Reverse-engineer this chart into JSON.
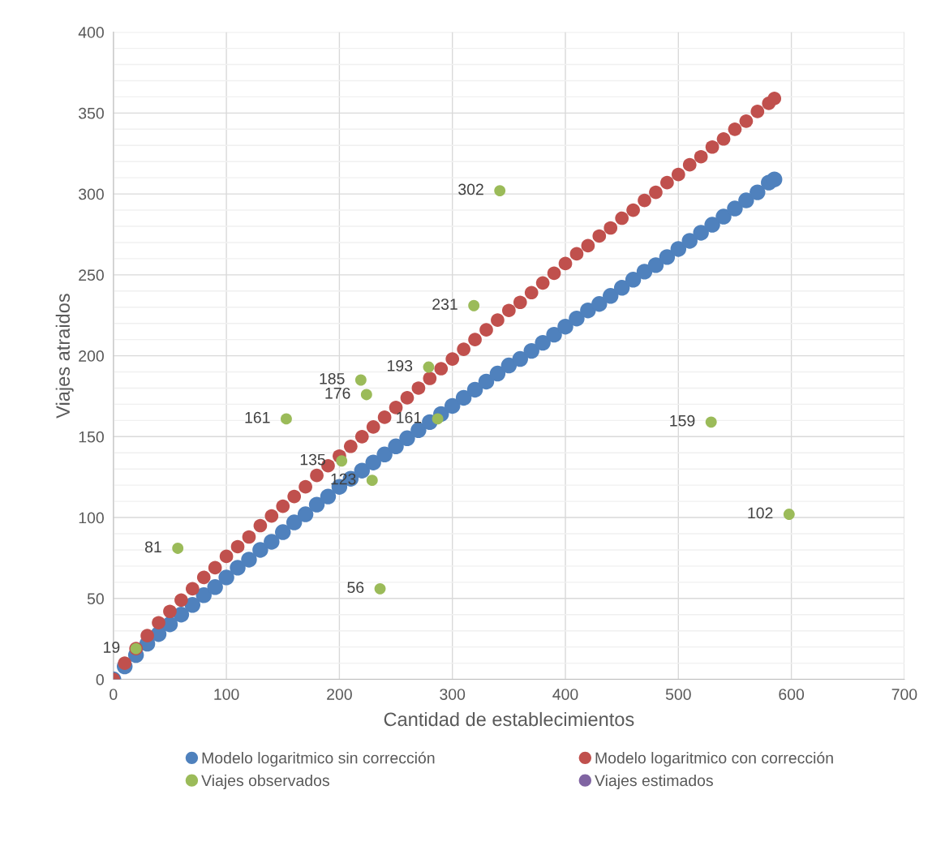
{
  "chart_data": {
    "type": "scatter",
    "xlabel": "Cantidad de establecimientos",
    "ylabel": "Viajes atraidos",
    "xlim": [
      0,
      700
    ],
    "xticks": [
      0,
      100,
      200,
      300,
      400,
      500,
      600,
      700
    ],
    "ylim": [
      0,
      400
    ],
    "yticks": [
      0,
      50,
      100,
      150,
      200,
      250,
      300,
      350,
      400
    ],
    "grid": true,
    "legend": "bottom",
    "marker": "circle",
    "series": [
      {
        "name": "Modelo logaritmico sin corrección",
        "color": "#4f81bd",
        "x": [
          0,
          10,
          20,
          30,
          40,
          50,
          60,
          70,
          80,
          90,
          100,
          110,
          120,
          130,
          140,
          150,
          160,
          170,
          180,
          190,
          200,
          210,
          220,
          230,
          240,
          250,
          260,
          270,
          280,
          290,
          300,
          310,
          320,
          330,
          340,
          350,
          360,
          370,
          380,
          390,
          400,
          410,
          420,
          430,
          440,
          450,
          460,
          470,
          480,
          490,
          500,
          510,
          520,
          530,
          540,
          550,
          560,
          570,
          580,
          585
        ],
        "values": [
          0,
          8,
          15,
          22,
          28,
          34,
          40,
          46,
          52,
          57,
          63,
          69,
          74,
          80,
          85,
          91,
          97,
          102,
          108,
          113,
          119,
          124,
          129,
          134,
          139,
          144,
          149,
          154,
          159,
          164,
          169,
          174,
          179,
          184,
          189,
          194,
          198,
          203,
          208,
          213,
          218,
          223,
          228,
          232,
          237,
          242,
          247,
          252,
          256,
          261,
          266,
          271,
          276,
          281,
          286,
          291,
          296,
          301,
          307,
          309
        ]
      },
      {
        "name": "Modelo logaritmico con corrección",
        "color": "#c0504d",
        "x": [
          0,
          10,
          20,
          30,
          40,
          50,
          60,
          70,
          80,
          90,
          100,
          110,
          120,
          130,
          140,
          150,
          160,
          170,
          180,
          190,
          200,
          210,
          220,
          230,
          240,
          250,
          260,
          270,
          280,
          290,
          300,
          310,
          320,
          330,
          340,
          350,
          360,
          370,
          380,
          390,
          400,
          410,
          420,
          430,
          440,
          450,
          460,
          470,
          480,
          490,
          500,
          510,
          520,
          530,
          540,
          550,
          560,
          570,
          580,
          585
        ],
        "values": [
          0,
          10,
          19,
          27,
          35,
          42,
          49,
          56,
          63,
          69,
          76,
          82,
          88,
          95,
          101,
          107,
          113,
          119,
          126,
          132,
          138,
          144,
          150,
          156,
          162,
          168,
          174,
          180,
          186,
          192,
          198,
          204,
          210,
          216,
          222,
          228,
          233,
          239,
          245,
          251,
          257,
          263,
          268,
          274,
          279,
          285,
          290,
          296,
          301,
          307,
          312,
          318,
          323,
          329,
          334,
          340,
          345,
          351,
          356,
          359
        ]
      },
      {
        "name": "Viajes observados",
        "color": "#9bbb59",
        "x": [
          20,
          57,
          153,
          202,
          219,
          224,
          229,
          236,
          279,
          287,
          319,
          342,
          529,
          598
        ],
        "values": [
          19,
          81,
          161,
          135,
          185,
          176,
          123,
          56,
          193,
          161,
          231,
          302,
          159,
          102
        ],
        "value_labels": [
          "19",
          "81",
          "161",
          "135",
          "185",
          "176",
          "123",
          "56",
          "193",
          "161",
          "231",
          "302",
          "159",
          "102"
        ]
      },
      {
        "name": "Viajes estimados",
        "color": "#8064a2"
      }
    ]
  }
}
